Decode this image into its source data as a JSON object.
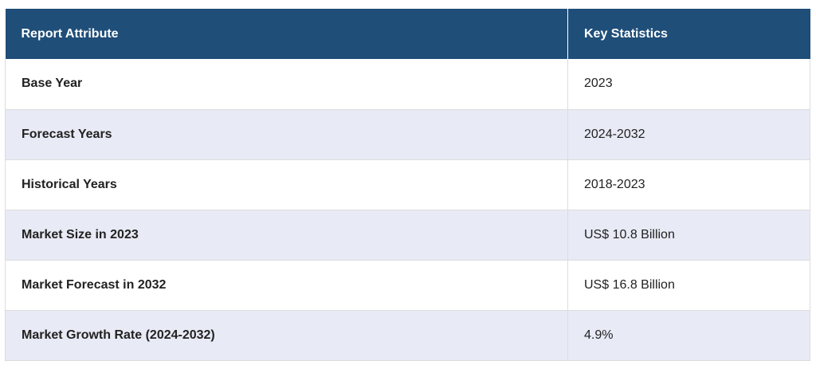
{
  "table": {
    "headers": [
      "Report Attribute",
      "Key Statistics"
    ],
    "rows": [
      {
        "attribute": "Base Year",
        "value": "2023"
      },
      {
        "attribute": "Forecast Years",
        "value": "2024-2032"
      },
      {
        "attribute": "Historical Years",
        "value": "2018-2023"
      },
      {
        "attribute": "Market Size in 2023",
        "value": "US$ 10.8 Billion"
      },
      {
        "attribute": "Market Forecast in 2032",
        "value": "US$ 16.8 Billion"
      },
      {
        "attribute": "Market Growth Rate (2024-2032)",
        "value": "4.9%"
      }
    ]
  },
  "colors": {
    "header_bg": "#1f4e79",
    "header_text": "#ffffff",
    "stripe_bg": "#e8eaf5",
    "row_bg": "#ffffff"
  }
}
